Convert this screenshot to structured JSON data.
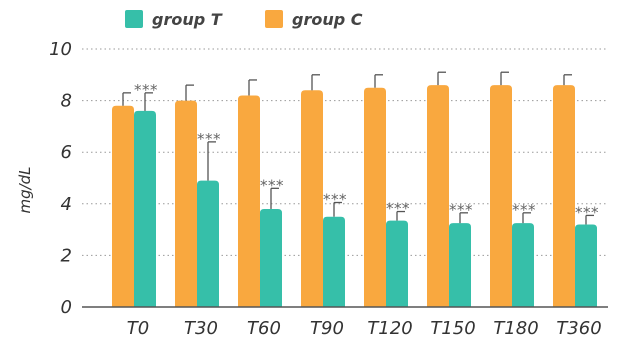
{
  "chart_data": {
    "type": "bar",
    "ylabel": "mg/dL",
    "ylim": [
      0,
      10
    ],
    "yticks": [
      "0",
      "2",
      "4",
      "6",
      "8",
      "10"
    ],
    "categories": [
      "T0",
      "T30",
      "T60",
      "T90",
      "T120",
      "T150",
      "T180",
      "T360"
    ],
    "series": [
      {
        "name": "group C",
        "color": "#F9A83F",
        "values": [
          7.8,
          8.0,
          8.2,
          8.4,
          8.5,
          8.6,
          8.6,
          8.6
        ],
        "errors": [
          0.5,
          0.6,
          0.6,
          0.6,
          0.5,
          0.5,
          0.5,
          0.4
        ]
      },
      {
        "name": "group T",
        "color": "#36BFA9",
        "values": [
          7.6,
          4.9,
          3.8,
          3.5,
          3.35,
          3.25,
          3.25,
          3.2
        ],
        "errors": [
          0.7,
          1.5,
          0.8,
          0.55,
          0.35,
          0.4,
          0.4,
          0.35
        ]
      }
    ],
    "annotations": [
      "***",
      "***",
      "***",
      "***",
      "***",
      "***",
      "***",
      "***"
    ],
    "grid": true,
    "legend_position": "top-left"
  }
}
